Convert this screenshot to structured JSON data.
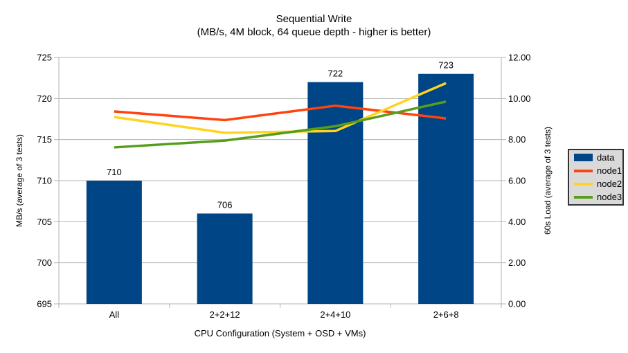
{
  "title": {
    "line1": "Sequential Write",
    "line2": "(MB/s, 4M block, 64 queue depth - higher is better)"
  },
  "chart_data": {
    "type": "bar",
    "subtype": "combo-bar-line-dual-axis",
    "categories": [
      "All",
      "2+2+12",
      "2+4+10",
      "2+6+8"
    ],
    "bar_series": {
      "name": "data",
      "axis": "left",
      "values": [
        710,
        706,
        722,
        723
      ],
      "color": "#004586"
    },
    "line_series": [
      {
        "name": "node1",
        "axis": "right",
        "values": [
          9.37,
          8.95,
          9.65,
          9.03
        ],
        "color": "#ff420e"
      },
      {
        "name": "node2",
        "axis": "right",
        "values": [
          9.1,
          8.33,
          8.42,
          10.75
        ],
        "color": "#ffd320"
      },
      {
        "name": "node3",
        "axis": "right",
        "values": [
          7.62,
          7.95,
          8.65,
          9.85
        ],
        "color": "#579d1c"
      }
    ],
    "left_axis": {
      "label": "MB/s (average of 3 tests)",
      "min": 695,
      "max": 725,
      "step": 5,
      "tick_labels": [
        "695",
        "700",
        "705",
        "710",
        "715",
        "720",
        "725"
      ]
    },
    "right_axis": {
      "label": "60s Load (average of 3 tests)",
      "min": 0,
      "max": 12,
      "step": 2,
      "tick_labels": [
        "0.00",
        "2.00",
        "4.00",
        "6.00",
        "8.00",
        "10.00",
        "12.00"
      ]
    },
    "x_axis": {
      "label": "CPU Configuration (System + OSD + VMs)"
    },
    "legend": {
      "position": "right",
      "entries": [
        {
          "label": "data",
          "color": "#004586",
          "type": "bar"
        },
        {
          "label": "node1",
          "color": "#ff420e",
          "type": "line"
        },
        {
          "label": "node2",
          "color": "#ffd320",
          "type": "line"
        },
        {
          "label": "node3",
          "color": "#579d1c",
          "type": "line"
        }
      ]
    },
    "grid": true
  },
  "colors": {
    "background": "#ffffff",
    "grid": "#b3b3b3",
    "axis": "#b3b3b3",
    "text": "#000000",
    "legend_bg": "#d9d9d9",
    "legend_border": "#333333"
  }
}
